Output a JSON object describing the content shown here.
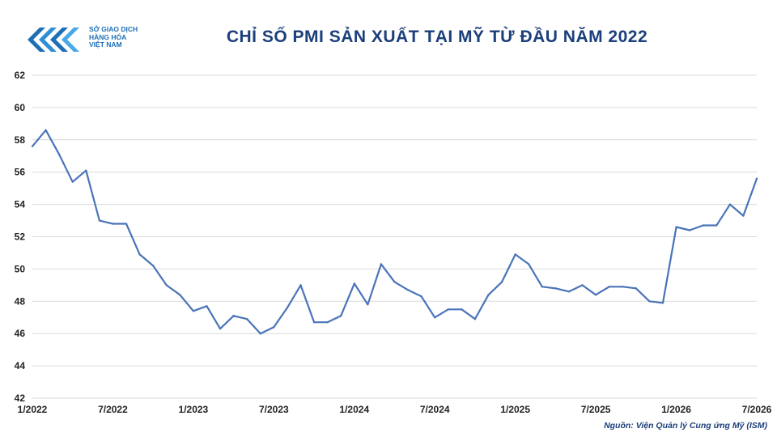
{
  "header": {
    "logo_lines": [
      "SỞ GIAO DỊCH",
      "HÀNG HÓA",
      "VIỆT NAM"
    ],
    "logo_icon": "mxv-logo-icon",
    "title": "CHỈ SỐ PMI SẢN XUẤT TẠI MỸ TỪ ĐẦU NĂM 2022"
  },
  "footer": {
    "source": "Nguồn: Viện Quản lý Cung ứng Mỹ (ISM)"
  },
  "colors": {
    "line": "#4a74b8",
    "grid": "#d9d9d9",
    "title": "#1b3f7a"
  },
  "chart_data": {
    "type": "line",
    "title": "CHỈ SỐ PMI SẢN XUẤT TẠI MỸ TỪ ĐẦU NĂM 2022",
    "xlabel": "",
    "ylabel": "",
    "ylim": [
      42,
      62
    ],
    "yticks": [
      42,
      44,
      46,
      48,
      50,
      52,
      54,
      56,
      58,
      60,
      62
    ],
    "grid": true,
    "legend": "none",
    "x_tick_labels": [
      "1/2022",
      "7/2022",
      "1/2023",
      "7/2023",
      "1/2024",
      "7/2024",
      "1/2025",
      "7/2025",
      "1/2026",
      "7/2026"
    ],
    "x_tick_positions": [
      0,
      6,
      12,
      18,
      24,
      30,
      36,
      42,
      48,
      54
    ],
    "series": [
      {
        "values": [
          57.6,
          58.6,
          57.1,
          55.4,
          56.1,
          53.0,
          52.8,
          52.8,
          50.9,
          50.2,
          49.0,
          48.4,
          47.4,
          47.7,
          46.3,
          47.1,
          46.9,
          46.0,
          46.4,
          47.6,
          49.0,
          46.7,
          46.7,
          47.1,
          49.1,
          47.8,
          50.3,
          49.2,
          48.7,
          48.3,
          47.0,
          47.5,
          47.5,
          46.9,
          48.4,
          49.2,
          50.9,
          50.3,
          48.9,
          48.8,
          48.6,
          49.0,
          48.4,
          48.9,
          48.9,
          48.8,
          48.0,
          47.9,
          52.6,
          52.4,
          52.7,
          52.7,
          54.0,
          53.3,
          55.6
        ]
      }
    ]
  }
}
